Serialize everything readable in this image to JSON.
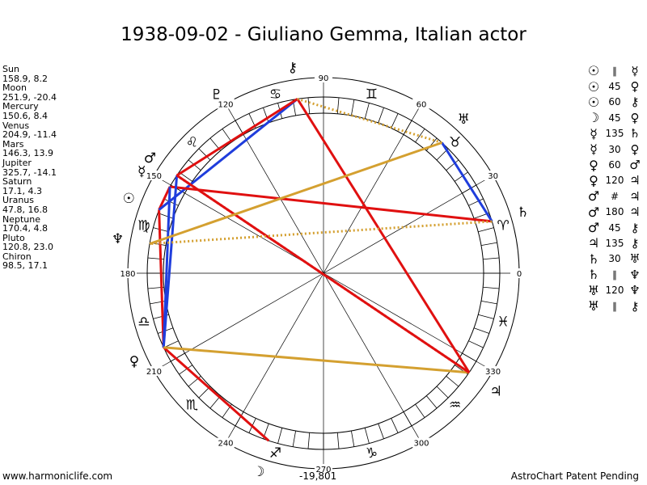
{
  "title": "1938-09-02 - Giuliano Gemma, Italian actor",
  "planets": [
    {
      "name": "Sun",
      "glyph": "☉",
      "lon": 158.9,
      "lat": 8.2,
      "value_text": "158.9, 8.2"
    },
    {
      "name": "Moon",
      "glyph": "☽",
      "lon": 251.9,
      "lat": -20.4,
      "value_text": "251.9, -20.4"
    },
    {
      "name": "Mercury",
      "glyph": "☿",
      "lon": 150.6,
      "lat": 8.4,
      "value_text": "150.6, 8.4"
    },
    {
      "name": "Venus",
      "glyph": "♀",
      "lon": 204.9,
      "lat": -11.4,
      "value_text": "204.9, -11.4"
    },
    {
      "name": "Mars",
      "glyph": "♂",
      "lon": 146.3,
      "lat": 13.9,
      "value_text": "146.3, 13.9"
    },
    {
      "name": "Jupiter",
      "glyph": "♃",
      "lon": 325.7,
      "lat": -14.1,
      "value_text": "325.7, -14.1"
    },
    {
      "name": "Saturn",
      "glyph": "♄",
      "lon": 17.1,
      "lat": 4.3,
      "value_text": "17.1, 4.3"
    },
    {
      "name": "Uranus",
      "glyph": "♅",
      "lon": 47.8,
      "lat": 16.8,
      "value_text": "47.8, 16.8"
    },
    {
      "name": "Neptune",
      "glyph": "♆",
      "lon": 170.4,
      "lat": 4.8,
      "value_text": "170.4, 4.8"
    },
    {
      "name": "Pluto",
      "glyph": "♇",
      "lon": 120.8,
      "lat": 23.0,
      "value_text": "120.8, 23.0"
    },
    {
      "name": "Chiron",
      "glyph": "⚷",
      "lon": 98.5,
      "lat": 17.1,
      "value_text": "98.5, 17.1"
    }
  ],
  "aspects": [
    {
      "p1": "☉",
      "angle": "∥",
      "p2": "☿",
      "color": "#e01010",
      "dotted": false
    },
    {
      "p1": "☉",
      "angle": "45",
      "p2": "♀",
      "color": "#e01010",
      "dotted": false
    },
    {
      "p1": "☉",
      "angle": "60",
      "p2": "⚷",
      "color": "#1f3ddc",
      "dotted": false
    },
    {
      "p1": "☽",
      "angle": "45",
      "p2": "♀",
      "color": "#e01010",
      "dotted": false
    },
    {
      "p1": "☿",
      "angle": "135",
      "p2": "♄",
      "color": "#e01010",
      "dotted": false
    },
    {
      "p1": "☿",
      "angle": "30",
      "p2": "♀",
      "color": "#1f3ddc",
      "dotted": false
    },
    {
      "p1": "♀",
      "angle": "60",
      "p2": "♂",
      "color": "#1f3ddc",
      "dotted": false
    },
    {
      "p1": "♀",
      "angle": "120",
      "p2": "♃",
      "color": "#d4a030",
      "dotted": false
    },
    {
      "p1": "♂",
      "angle": "#",
      "p2": "♃",
      "color": "#e01010",
      "dotted": true
    },
    {
      "p1": "♂",
      "angle": "180",
      "p2": "♃",
      "color": "#e01010",
      "dotted": false
    },
    {
      "p1": "♂",
      "angle": "45",
      "p2": "⚷",
      "color": "#e01010",
      "dotted": false
    },
    {
      "p1": "♃",
      "angle": "135",
      "p2": "⚷",
      "color": "#e01010",
      "dotted": false
    },
    {
      "p1": "♄",
      "angle": "30",
      "p2": "♅",
      "color": "#1f3ddc",
      "dotted": false
    },
    {
      "p1": "♄",
      "angle": "∥",
      "p2": "♆",
      "color": "#d4a030",
      "dotted": true
    },
    {
      "p1": "♅",
      "angle": "120",
      "p2": "♆",
      "color": "#d4a030",
      "dotted": false
    },
    {
      "p1": "♅",
      "angle": "∥",
      "p2": "⚷",
      "color": "#d4a030",
      "dotted": true
    }
  ],
  "degree_labels": [
    "0",
    "30",
    "60",
    "90",
    "120",
    "150",
    "180",
    "210",
    "240",
    "270",
    "300",
    "330"
  ],
  "sign_glyphs": [
    "♈",
    "♉",
    "♊",
    "♋",
    "♌",
    "♍",
    "♎",
    "♏",
    "♐",
    "♑",
    "♒",
    "♓"
  ],
  "footer": {
    "website": "www.harmoniclife.com",
    "center": "-19,801",
    "patent": "AstroChart Patent Pending"
  }
}
